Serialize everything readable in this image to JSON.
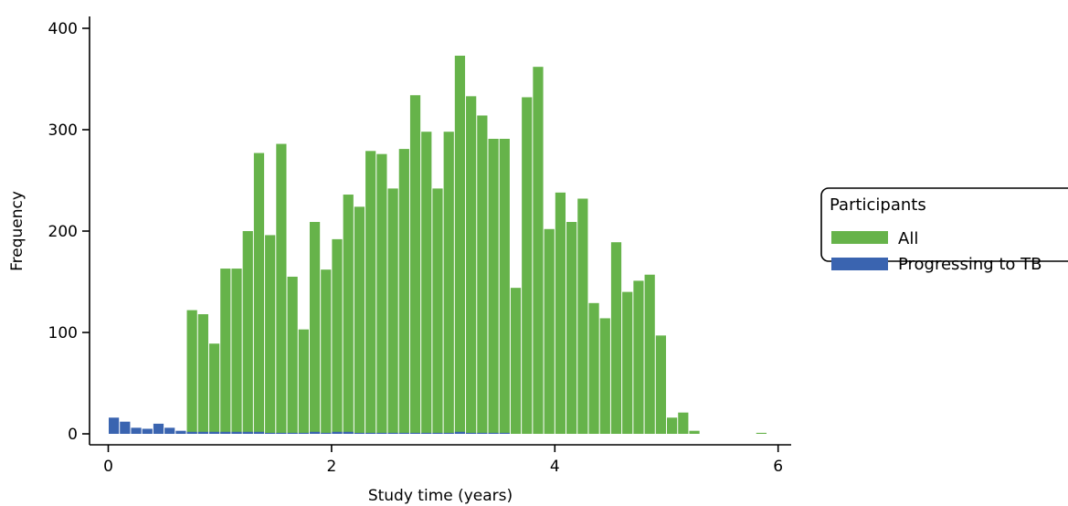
{
  "chart_data": {
    "type": "bar",
    "title": "",
    "xlabel": "Study time (years)",
    "ylabel": "Frequency",
    "xlim": [
      -0.1,
      6.1
    ],
    "ylim": [
      0,
      410
    ],
    "bin_width": 0.1,
    "x_ticks": [
      0,
      2,
      4,
      6
    ],
    "y_ticks": [
      0,
      100,
      200,
      300,
      400
    ],
    "grid": false,
    "legend": {
      "title": "Participants",
      "position": "right"
    },
    "series": [
      {
        "name": "All",
        "color": "#66b34a",
        "x": [
          0.8,
          0.9,
          1.0,
          1.1,
          1.2,
          1.3,
          1.4,
          1.5,
          1.6,
          1.7,
          1.8,
          1.9,
          2.0,
          2.1,
          2.2,
          2.3,
          2.4,
          2.5,
          2.6,
          2.7,
          2.8,
          2.9,
          3.0,
          3.1,
          3.2,
          3.3,
          3.4,
          3.5,
          3.6,
          3.7,
          3.8,
          3.9,
          4.0,
          4.1,
          4.2,
          4.3,
          4.4,
          4.5,
          4.6,
          4.7,
          4.8,
          4.9,
          5.0,
          5.1,
          5.2,
          5.3,
          5.9
        ],
        "values": [
          122,
          118,
          89,
          163,
          163,
          200,
          277,
          196,
          286,
          155,
          103,
          209,
          162,
          192,
          236,
          224,
          279,
          276,
          242,
          281,
          334,
          298,
          242,
          298,
          373,
          333,
          314,
          291,
          291,
          144,
          332,
          362,
          202,
          238,
          209,
          232,
          129,
          114,
          189,
          140,
          151,
          157,
          97,
          16,
          21,
          3,
          1
        ]
      },
      {
        "name": "Progressing to TB",
        "color": "#3a64b0",
        "x": [
          0.1,
          0.2,
          0.3,
          0.4,
          0.5,
          0.6,
          0.7,
          0.8,
          0.9,
          1.0,
          1.1,
          1.2,
          1.3,
          1.4,
          1.5,
          1.6,
          1.7,
          1.8,
          1.9,
          2.0,
          2.1,
          2.2,
          2.3,
          2.4,
          2.5,
          2.6,
          2.7,
          2.8,
          2.9,
          3.0,
          3.1,
          3.2,
          3.3,
          3.4,
          3.5,
          3.6
        ],
        "values": [
          16,
          12,
          6,
          5,
          10,
          6,
          3,
          2,
          2,
          2,
          2,
          2,
          2,
          2,
          1,
          1,
          1,
          1,
          2,
          1,
          2,
          2,
          1,
          1,
          1,
          1,
          1,
          1,
          1,
          1,
          1,
          2,
          1,
          1,
          1,
          1
        ]
      }
    ]
  }
}
